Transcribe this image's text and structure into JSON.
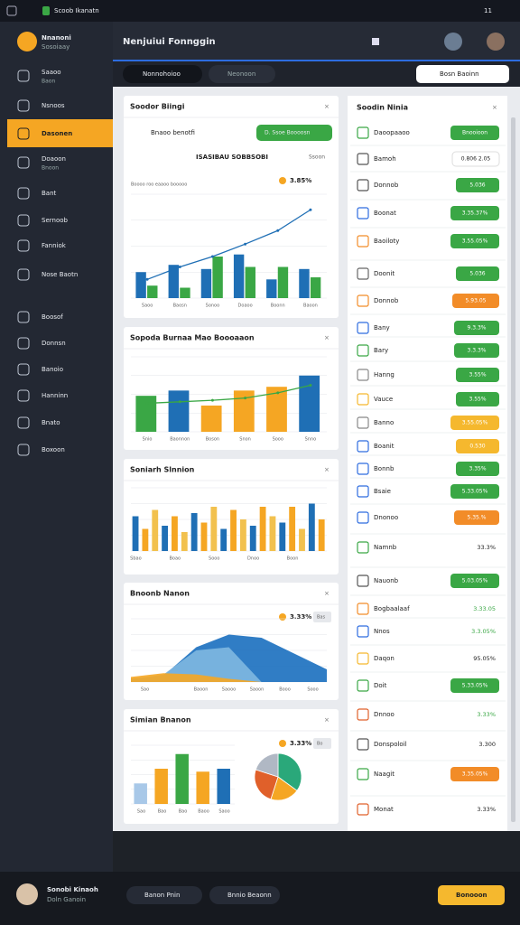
{
  "status_bar": {
    "app": "Scoob Ikanatn",
    "time": "11"
  },
  "sidebar": {
    "profile": {
      "name": "Nnanoni",
      "sub": "Sosoiaay"
    },
    "items": [
      {
        "label": "Saaoo",
        "sub": "Baon"
      },
      {
        "label": "Nsnoos"
      },
      {
        "label": "Dasonen",
        "active": true
      },
      {
        "label": "Doaoon",
        "sub": "Bnoon"
      },
      {
        "label": "Bant"
      },
      {
        "label": "Sernoob"
      },
      {
        "label": "Fanniok"
      },
      {
        "label": "Nose Baotn"
      },
      {
        "label": "Boosof"
      },
      {
        "label": "Donnsn"
      },
      {
        "label": "Banoio"
      },
      {
        "label": "Hanninn"
      },
      {
        "label": "Bnato"
      },
      {
        "label": "Boxoon"
      }
    ]
  },
  "header": {
    "title": "Nenjuiui Fonnggin",
    "tabs": [
      "Nonnohoioo",
      "Neonoon"
    ],
    "search": "Bosn Baoinn"
  },
  "cards": [
    {
      "title": "Soodor Biingi",
      "note": "Bnaoo benotfi",
      "button": "D. Ssoe Boooosn",
      "heading": "ISASIBAU SOBBSOBI",
      "tag": "Ssoon",
      "stat": "3.85%",
      "legend": "Boooo roo eaaoo booooo",
      "chart": {
        "type": "bar",
        "ylim": [
          0,
          100
        ],
        "categories": [
          "Saoo",
          "Baosn",
          "Sonoo",
          "Doaoo",
          "Boonn",
          "Baoon"
        ],
        "series": [
          {
            "color": "#1f6fb5",
            "values": [
              25,
              32,
              28,
              42,
              18,
              28
            ]
          },
          {
            "color": "#3aa745",
            "values": [
              12,
              10,
              40,
              30,
              30,
              20
            ]
          },
          {
            "color": "#1f6fb5",
            "kind": "line",
            "values": [
              18,
              30,
              40,
              52,
              65,
              85
            ]
          }
        ]
      }
    },
    {
      "title": "Sopoda Burnaa Mao Boooaaon",
      "chart": {
        "type": "bar",
        "ylim": [
          0,
          100
        ],
        "categories": [
          "Snio",
          "Baonnon",
          "Boson",
          "Snon",
          "Sooo",
          "Snno"
        ],
        "series": [
          {
            "colors": [
              "#3aa745",
              "#1f6fb5",
              "#f5a623",
              "#f5a623",
              "#f5a623",
              "#1f6fb5"
            ],
            "values": [
              48,
              55,
              35,
              55,
              60,
              75
            ]
          },
          {
            "color": "#3aa745",
            "kind": "line",
            "values": [
              38,
              40,
              42,
              45,
              52,
              62
            ]
          }
        ]
      }
    },
    {
      "title": "Soniarh Slnnion",
      "chart": {
        "type": "bar",
        "ylim": [
          0,
          100
        ],
        "categories": [
          "Sbao",
          null,
          null,
          null,
          "Boao",
          null,
          null,
          null,
          "Sooo",
          null,
          null,
          null,
          "Dnoo",
          null,
          null,
          null,
          "Boon",
          null,
          null,
          null
        ],
        "series": [
          {
            "colors": [
              "#1f6fb5",
              "#f5a623",
              "#f2c14e"
            ],
            "values": [
              55,
              35,
              65,
              40,
              55,
              30,
              60,
              45,
              70,
              35,
              65,
              50,
              40,
              70,
              55,
              45,
              70,
              35,
              75,
              50
            ]
          }
        ]
      }
    },
    {
      "title": "Bnoonb Nanon",
      "stat": "3.33%",
      "chip": "Bas",
      "chart": {
        "type": "area",
        "ylim": [
          0,
          100
        ],
        "categories": [
          "Sao",
          null,
          "Baoon",
          "Saooo",
          "Saoon",
          "Booo",
          "Sooo"
        ],
        "series": [
          {
            "color": "#1a6fbf",
            "values": [
              5,
              10,
              55,
              75,
              70,
              45,
              20
            ]
          },
          {
            "color": "#7fb8e0",
            "values": [
              4,
              12,
              50,
              55,
              0,
              0,
              0
            ]
          },
          {
            "color": "#f5a623",
            "values": [
              8,
              14,
              12,
              5,
              0,
              0,
              0
            ]
          }
        ]
      }
    },
    {
      "title": "Simian Bnanon",
      "stat": "3.33%",
      "chip": "Bo",
      "chart": {
        "type": "bar",
        "ylim": [
          0,
          100
        ],
        "categories": [
          "Sao",
          "Bao",
          "Bao",
          "Baoo",
          "Saoo"
        ],
        "series": [
          {
            "colors": [
              "#a8c8e8",
              "#f5a623",
              "#3aa745",
              "#f5a623",
              "#1f6fb5"
            ],
            "values": [
              35,
              60,
              85,
              55,
              60
            ]
          }
        ]
      },
      "pie": {
        "type": "pie",
        "values": [
          35,
          20,
          25,
          20
        ],
        "colors": [
          "#2aa87a",
          "#f5a623",
          "#e0602a",
          "#b0b8c4"
        ]
      }
    }
  ],
  "panel": {
    "title": "Soodin Ninia",
    "rows": [
      {
        "label": "Daoopaaoo",
        "value": "Bnooioon",
        "color": "#3aa745"
      },
      {
        "label": "Bamoh",
        "value": "0.806 2.05",
        "color": "#ffffff"
      },
      {
        "label": "Donnob",
        "value": "5.036",
        "color": "#3aa745"
      },
      {
        "label": "Boonat",
        "value": "3.35.37%",
        "color": "#3aa745"
      },
      {
        "label": "Baoiloty",
        "value": "3.55.05%",
        "color": "#3aa745"
      },
      {
        "label": "Doonit",
        "value": "5.036",
        "color": "#3aa745"
      },
      {
        "label": "Donnob",
        "value": "5.93.05",
        "color": "#f28c28"
      },
      {
        "label": "Bany",
        "value": "9.3.3%",
        "color": "#3aa745"
      },
      {
        "label": "Bary",
        "value": "3.3.3%",
        "color": "#3aa745"
      },
      {
        "label": "Hanng",
        "value": "3.55%",
        "color": "#3aa745"
      },
      {
        "label": "Vauce",
        "value": "3.55%",
        "color": "#3aa745"
      },
      {
        "label": "Banno",
        "value": "3.55.05%",
        "color": "#f5b82e"
      },
      {
        "label": "Boanit",
        "value": "0.530",
        "color": "#f5b82e"
      },
      {
        "label": "Bonnb",
        "value": "3.35%",
        "color": "#3aa745"
      },
      {
        "label": "Bsaie",
        "value": "5.33.05%",
        "color": "#3aa745"
      },
      {
        "label": "Dnonoo",
        "value": "5.35.%",
        "color": "#f28c28"
      },
      {
        "label": "Namnb",
        "value": "33.3%",
        "text_color": "#222222"
      },
      {
        "label": "Nauonb",
        "value": "5.03.05%",
        "color": "#3aa745"
      },
      {
        "label": "Bogbaalaaf",
        "value": "3.33.05",
        "text_color": "#3aa745"
      },
      {
        "label": "Nnos",
        "value": "3.3.05%",
        "text_color": "#3aa745"
      },
      {
        "label": "Daqon",
        "value": "95.05%",
        "text_color": "#222222"
      },
      {
        "label": "Doit",
        "value": "5.33.05%",
        "color": "#3aa745"
      },
      {
        "label": "Dnnoo",
        "value": "3.33%",
        "text_color": "#3aa745"
      },
      {
        "label": "Donspoloil",
        "value": "3.300",
        "text_color": "#222222"
      },
      {
        "label": "Naagit",
        "value": "3.35.05%",
        "color": "#f28c28"
      },
      {
        "label": "Monat",
        "value": "3.33%",
        "text_color": "#222222"
      }
    ]
  },
  "footer": {
    "user": {
      "name": "Sonobi Kinaoh",
      "sub": "Doln Ganoin"
    },
    "chips": [
      "Banon Pnin",
      "Bnnio Beaonn"
    ],
    "button": "Bonooon"
  }
}
